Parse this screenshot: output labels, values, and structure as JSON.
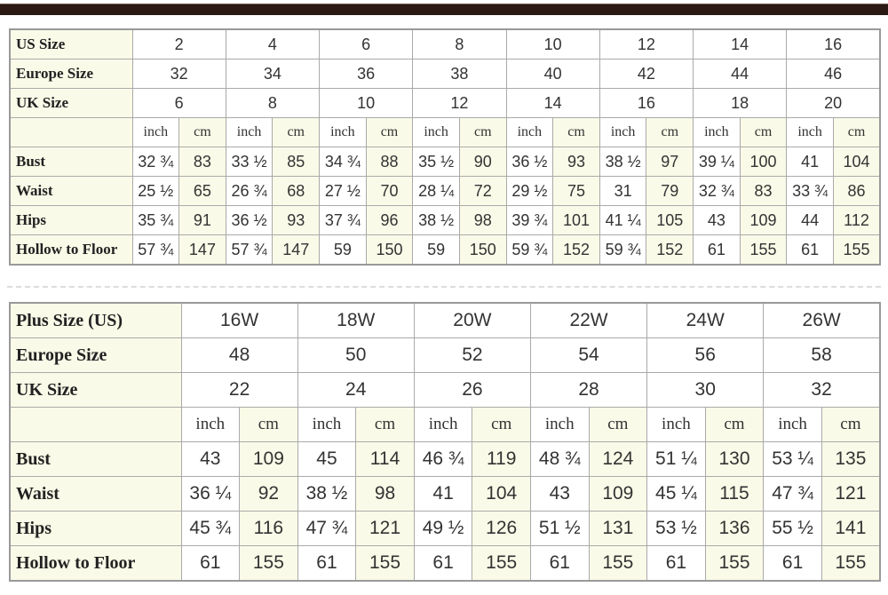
{
  "standard_chart": {
    "header_rows": [
      {
        "label": "US Size",
        "values": [
          "2",
          "4",
          "6",
          "8",
          "10",
          "12",
          "14",
          "16"
        ]
      },
      {
        "label": "Europe Size",
        "values": [
          "32",
          "34",
          "36",
          "38",
          "40",
          "42",
          "44",
          "46"
        ]
      },
      {
        "label": "UK Size",
        "values": [
          "6",
          "8",
          "10",
          "12",
          "14",
          "16",
          "18",
          "20"
        ]
      }
    ],
    "units": [
      "inch",
      "cm"
    ],
    "measure_rows": [
      {
        "label": "Bust",
        "values": [
          "32 ¾",
          "83",
          "33 ½",
          "85",
          "34 ¾",
          "88",
          "35 ½",
          "90",
          "36 ½",
          "93",
          "38 ½",
          "97",
          "39 ¼",
          "100",
          "41",
          "104"
        ]
      },
      {
        "label": "Waist",
        "values": [
          "25 ½",
          "65",
          "26 ¾",
          "68",
          "27 ½",
          "70",
          "28 ¼",
          "72",
          "29 ½",
          "75",
          "31",
          "79",
          "32 ¾",
          "83",
          "33 ¾",
          "86"
        ]
      },
      {
        "label": "Hips",
        "values": [
          "35 ¾",
          "91",
          "36 ½",
          "93",
          "37 ¾",
          "96",
          "38 ½",
          "98",
          "39 ¾",
          "101",
          "41 ¼",
          "105",
          "43",
          "109",
          "44",
          "112"
        ]
      },
      {
        "label": "Hollow to Floor",
        "values": [
          "57 ¾",
          "147",
          "57 ¾",
          "147",
          "59",
          "150",
          "59",
          "150",
          "59 ¾",
          "152",
          "59 ¾",
          "152",
          "61",
          "155",
          "61",
          "155"
        ]
      }
    ]
  },
  "plus_chart": {
    "header_rows": [
      {
        "label": "Plus Size (US)",
        "values": [
          "16W",
          "18W",
          "20W",
          "22W",
          "24W",
          "26W"
        ]
      },
      {
        "label": "Europe Size",
        "values": [
          "48",
          "50",
          "52",
          "54",
          "56",
          "58"
        ]
      },
      {
        "label": "UK Size",
        "values": [
          "22",
          "24",
          "26",
          "28",
          "30",
          "32"
        ]
      }
    ],
    "units": [
      "inch",
      "cm"
    ],
    "measure_rows": [
      {
        "label": "Bust",
        "values": [
          "43",
          "109",
          "45",
          "114",
          "46 ¾",
          "119",
          "48 ¾",
          "124",
          "51 ¼",
          "130",
          "53 ¼",
          "135"
        ]
      },
      {
        "label": "Waist",
        "values": [
          "36 ¼",
          "92",
          "38 ½",
          "98",
          "41",
          "104",
          "43",
          "109",
          "45 ¼",
          "115",
          "47 ¾",
          "121"
        ]
      },
      {
        "label": "Hips",
        "values": [
          "45 ¾",
          "116",
          "47 ¾",
          "121",
          "49 ½",
          "126",
          "51 ½",
          "131",
          "53 ½",
          "136",
          "55 ½",
          "141"
        ]
      },
      {
        "label": "Hollow to Floor",
        "values": [
          "61",
          "155",
          "61",
          "155",
          "61",
          "155",
          "61",
          "155",
          "61",
          "155",
          "61",
          "155"
        ]
      }
    ]
  }
}
